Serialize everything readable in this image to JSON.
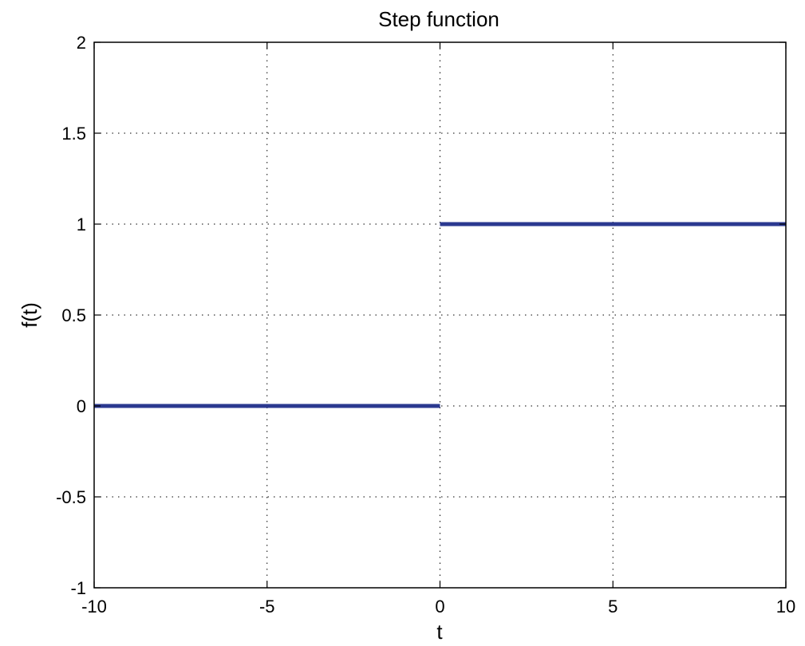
{
  "chart_data": {
    "type": "line",
    "title": "Step function",
    "xlabel": "t",
    "ylabel": "f(t)",
    "xlim": [
      -10,
      10
    ],
    "ylim": [
      -1,
      2
    ],
    "xticks": [
      -10,
      -5,
      0,
      5,
      10
    ],
    "xtick_labels": [
      "-10",
      "-5",
      "0",
      "5",
      "10"
    ],
    "yticks": [
      -1,
      -0.5,
      0,
      0.5,
      1,
      1.5,
      2
    ],
    "ytick_labels": [
      "-1",
      "-0.5",
      "0",
      "0.5",
      "1",
      "1.5",
      "2"
    ],
    "grid": true,
    "grid_style": "dotted",
    "series": [
      {
        "color": "#2b3990",
        "segments": [
          {
            "x": [
              -10,
              0
            ],
            "y": [
              0,
              0
            ]
          },
          {
            "x": [
              0,
              10
            ],
            "y": [
              1,
              1
            ]
          }
        ]
      }
    ]
  }
}
